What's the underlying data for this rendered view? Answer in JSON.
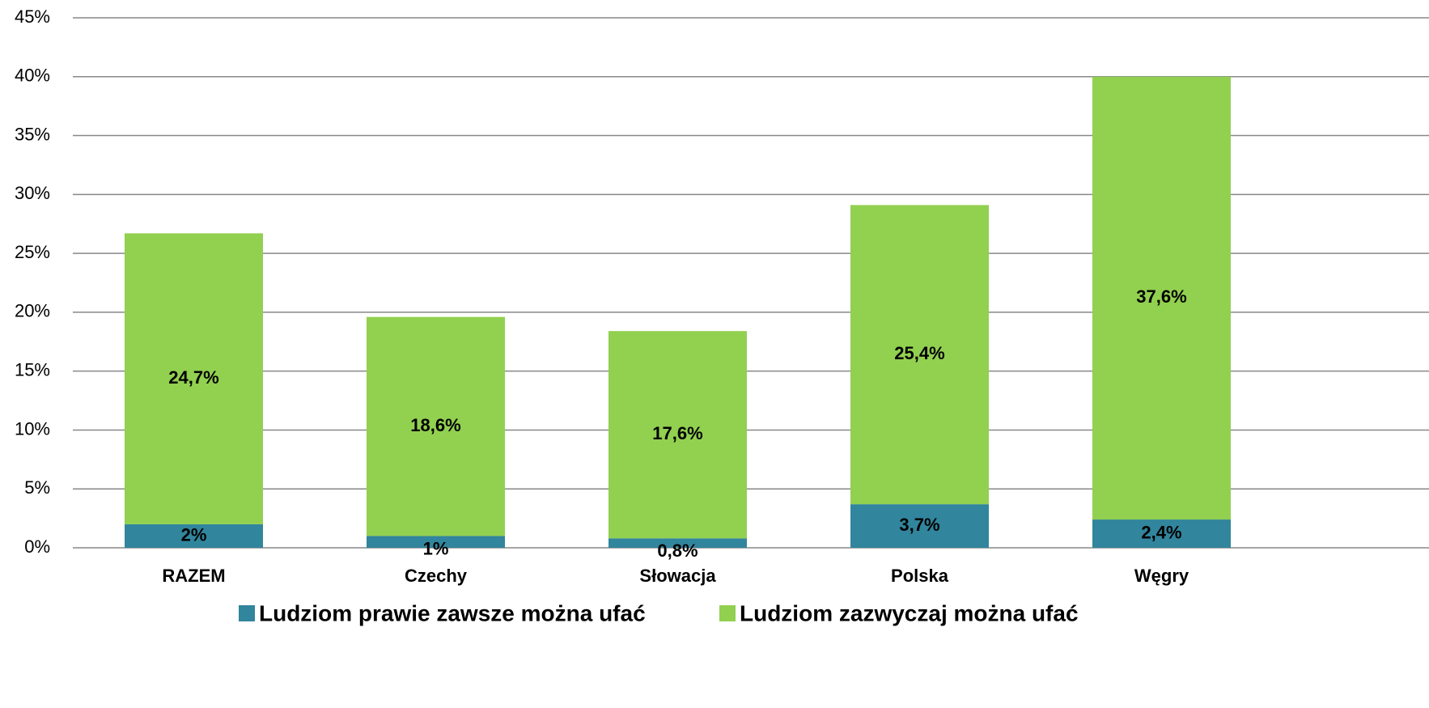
{
  "chart_data": {
    "type": "stacked_bar",
    "categories": [
      "RAZEM",
      "Czechy",
      "Słowacja",
      "Polska",
      "Węgry"
    ],
    "series": [
      {
        "name": "Ludziom prawie zawsze można ufać",
        "color": "#31859c",
        "values": [
          2,
          1,
          0.8,
          3.7,
          2.4
        ],
        "value_labels": [
          "2%",
          "1%",
          "0,8%",
          "3,7%",
          "2,4%"
        ]
      },
      {
        "name": "Ludziom zazwyczaj można ufać",
        "color": "#92d050",
        "values": [
          24.7,
          18.6,
          17.6,
          25.4,
          37.6
        ],
        "value_labels": [
          "24,7%",
          "18,6%",
          "17,6%",
          "25,4%",
          "37,6%"
        ]
      }
    ],
    "ylim": [
      0,
      45
    ],
    "yticks": [
      {
        "value": 0,
        "label": "0%"
      },
      {
        "value": 5,
        "label": "5%"
      },
      {
        "value": 10,
        "label": "10%"
      },
      {
        "value": 15,
        "label": "15%"
      },
      {
        "value": 20,
        "label": "20%"
      },
      {
        "value": 25,
        "label": "25%"
      },
      {
        "value": 30,
        "label": "30%"
      },
      {
        "value": 35,
        "label": "35%"
      },
      {
        "value": 40,
        "label": "40%"
      },
      {
        "value": 45,
        "label": "45%"
      }
    ],
    "grid": true,
    "legend": "bottom"
  }
}
